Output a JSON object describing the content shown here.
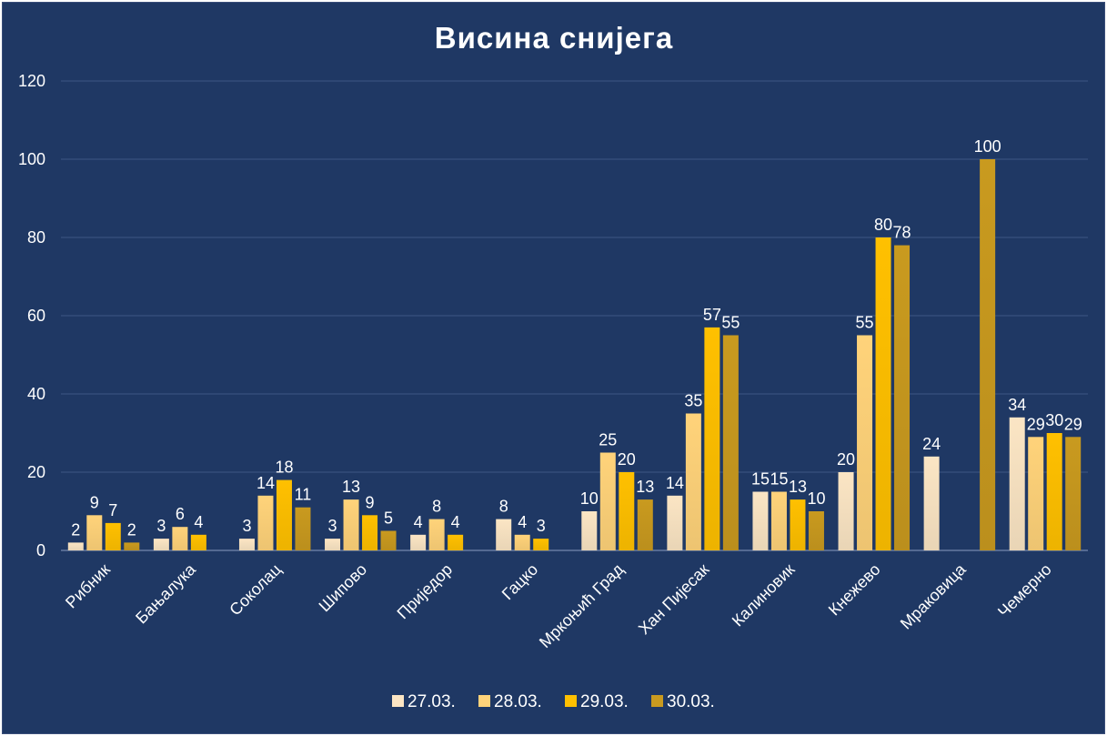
{
  "chart_data": {
    "type": "bar",
    "title": "Висина снијега",
    "xlabel": "",
    "ylabel": "",
    "ylim": [
      0,
      120
    ],
    "yticks": [
      0,
      20,
      40,
      60,
      80,
      100,
      120
    ],
    "grid": true,
    "legend_position": "bottom",
    "categories": [
      "Рибник",
      "Бањалука",
      "Соколац",
      "Шипово",
      "Приједор",
      "Гацко",
      "Мркоњић Град",
      "Хан Пијесак",
      "Калиновик",
      "Кнежево",
      "Мраковица",
      "Чемерно"
    ],
    "series": [
      {
        "name": "27.03.",
        "color": "#fbe5c4",
        "values": [
          2,
          3,
          3,
          3,
          4,
          8,
          10,
          14,
          15,
          20,
          24,
          34
        ]
      },
      {
        "name": "28.03.",
        "color": "#ffd37a",
        "values": [
          9,
          6,
          14,
          13,
          8,
          4,
          25,
          35,
          15,
          55,
          null,
          29
        ]
      },
      {
        "name": "29.03.",
        "color": "#ffc000",
        "values": [
          7,
          4,
          18,
          9,
          4,
          3,
          20,
          57,
          13,
          80,
          null,
          30
        ]
      },
      {
        "name": "30.03.",
        "color": "#c99a1f",
        "values": [
          2,
          null,
          11,
          5,
          null,
          null,
          13,
          55,
          10,
          78,
          100,
          29
        ]
      }
    ]
  }
}
